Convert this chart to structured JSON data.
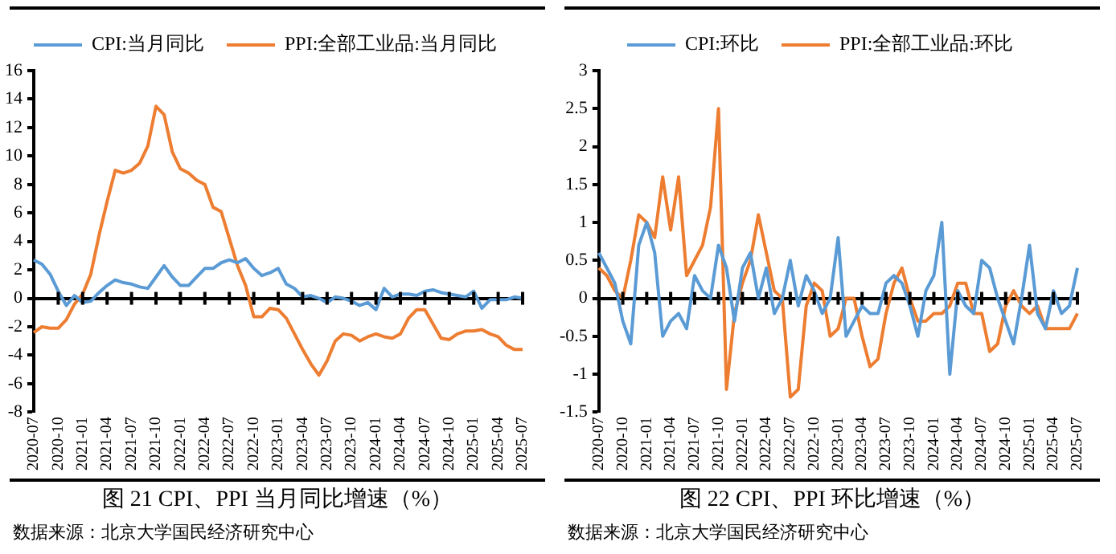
{
  "chart_data": [
    {
      "type": "line",
      "title": "图 21 CPI、PPI 当月同比增速（%）",
      "annotations": [
        "数据来源：北京大学国民经济研究中心"
      ],
      "categories": [
        "2020-07",
        null,
        null,
        "2020-10",
        null,
        null,
        "2021-01",
        null,
        null,
        "2021-04",
        null,
        null,
        "2021-07",
        null,
        null,
        "2021-10",
        null,
        null,
        "2022-01",
        null,
        null,
        "2022-04",
        null,
        null,
        "2022-07",
        null,
        null,
        "2022-10",
        null,
        null,
        "2023-01",
        null,
        null,
        "2023-04",
        null,
        null,
        "2023-07",
        null,
        null,
        "2023-10",
        null,
        null,
        "2024-01",
        null,
        null,
        "2024-04",
        null,
        null,
        "2024-07",
        null,
        null,
        "2024-10",
        null,
        null,
        "2025-01",
        null,
        null,
        "2025-04",
        null,
        null,
        "2025-07"
      ],
      "series": [
        {
          "name": "CPI:当月同比",
          "color": "#5b9bd5",
          "values": [
            2.7,
            2.4,
            1.7,
            0.5,
            -0.5,
            0.2,
            -0.3,
            -0.2,
            0.4,
            0.9,
            1.3,
            1.1,
            1.0,
            0.8,
            0.7,
            1.5,
            2.3,
            1.5,
            0.9,
            0.9,
            1.5,
            2.1,
            2.1,
            2.5,
            2.7,
            2.5,
            2.8,
            2.1,
            1.6,
            1.8,
            2.1,
            1.0,
            0.7,
            0.1,
            0.2,
            0.0,
            -0.3,
            0.1,
            0.0,
            -0.2,
            -0.5,
            -0.3,
            -0.8,
            0.7,
            0.1,
            0.3,
            0.3,
            0.2,
            0.5,
            0.6,
            0.4,
            0.3,
            0.2,
            0.1,
            0.5,
            -0.7,
            -0.1,
            -0.1,
            -0.1,
            0.1,
            0.0
          ]
        },
        {
          "name": "PPI:全部工业品:当月同比",
          "color": "#ed7d31",
          "values": [
            -2.4,
            -2.0,
            -2.1,
            -2.1,
            -1.5,
            -0.4,
            0.3,
            1.7,
            4.4,
            6.8,
            9.0,
            8.8,
            9.0,
            9.5,
            10.7,
            13.5,
            12.9,
            10.3,
            9.1,
            8.8,
            8.3,
            8.0,
            6.4,
            6.1,
            4.2,
            2.3,
            0.9,
            -1.3,
            -1.3,
            -0.7,
            -0.8,
            -1.4,
            -2.5,
            -3.6,
            -4.6,
            -5.4,
            -4.4,
            -3.0,
            -2.5,
            -2.6,
            -3.0,
            -2.7,
            -2.5,
            -2.7,
            -2.8,
            -2.5,
            -1.4,
            -0.8,
            -0.8,
            -1.8,
            -2.8,
            -2.9,
            -2.5,
            -2.3,
            -2.3,
            -2.2,
            -2.5,
            -2.7,
            -3.3,
            -3.6,
            -3.6
          ]
        }
      ],
      "ylim": [
        -8,
        16
      ],
      "yticks": [
        -8,
        -6,
        -4,
        -2,
        0,
        2,
        4,
        6,
        8,
        10,
        12,
        14,
        16
      ],
      "legend": "top",
      "marker": "none",
      "line_style": "solid"
    },
    {
      "type": "line",
      "title": "图 22 CPI、PPI 环比增速（%）",
      "annotations": [
        "数据来源：北京大学国民经济研究中心"
      ],
      "categories": [
        "2020-07",
        null,
        null,
        "2020-10",
        null,
        null,
        "2021-01",
        null,
        null,
        "2021-04",
        null,
        null,
        "2021-07",
        null,
        null,
        "2021-10",
        null,
        null,
        "2022-01",
        null,
        null,
        "2022-04",
        null,
        null,
        "2022-07",
        null,
        null,
        "2022-10",
        null,
        null,
        "2023-01",
        null,
        null,
        "2023-04",
        null,
        null,
        "2023-07",
        null,
        null,
        "2023-10",
        null,
        null,
        "2024-01",
        null,
        null,
        "2024-04",
        null,
        null,
        "2024-07",
        null,
        null,
        "2024-10",
        null,
        null,
        "2025-01",
        null,
        null,
        "2025-04",
        null,
        null,
        "2025-07"
      ],
      "series": [
        {
          "name": "CPI:环比",
          "color": "#5b9bd5",
          "values": [
            0.6,
            0.4,
            0.2,
            -0.3,
            -0.6,
            0.7,
            1.0,
            0.6,
            -0.5,
            -0.3,
            -0.2,
            -0.4,
            0.3,
            0.1,
            0.0,
            0.7,
            0.4,
            -0.3,
            0.4,
            0.6,
            0.0,
            0.4,
            -0.2,
            0.0,
            0.5,
            -0.1,
            0.3,
            0.1,
            -0.2,
            0.0,
            0.8,
            -0.5,
            -0.3,
            -0.1,
            -0.2,
            -0.2,
            0.2,
            0.3,
            0.2,
            -0.1,
            -0.5,
            0.1,
            0.3,
            1.0,
            -1.0,
            0.1,
            -0.1,
            -0.2,
            0.5,
            0.4,
            0.0,
            -0.3,
            -0.6,
            0.0,
            0.7,
            -0.2,
            -0.4,
            0.1,
            -0.2,
            -0.1,
            0.4
          ]
        },
        {
          "name": "PPI:全部工业品:环比",
          "color": "#ed7d31",
          "values": [
            0.4,
            0.3,
            0.1,
            0.0,
            0.5,
            1.1,
            1.0,
            0.8,
            1.6,
            0.9,
            1.6,
            0.3,
            0.5,
            0.7,
            1.2,
            2.5,
            -1.2,
            -0.2,
            0.2,
            0.5,
            1.1,
            0.6,
            0.1,
            0.0,
            -1.3,
            -1.2,
            -0.1,
            0.2,
            0.1,
            -0.5,
            -0.4,
            0.0,
            0.0,
            -0.5,
            -0.9,
            -0.8,
            -0.2,
            0.2,
            0.4,
            0.0,
            -0.3,
            -0.3,
            -0.2,
            -0.2,
            -0.1,
            0.2,
            0.2,
            -0.2,
            -0.2,
            -0.7,
            -0.6,
            -0.1,
            0.1,
            -0.1,
            -0.2,
            -0.1,
            -0.4,
            -0.4,
            -0.4,
            -0.4,
            -0.2
          ]
        }
      ],
      "ylim": [
        -1.5,
        3
      ],
      "yticks": [
        -1.5,
        -1,
        -0.5,
        0,
        0.5,
        1,
        1.5,
        2,
        2.5,
        3
      ],
      "legend": "top",
      "marker": "none",
      "line_style": "solid"
    }
  ]
}
